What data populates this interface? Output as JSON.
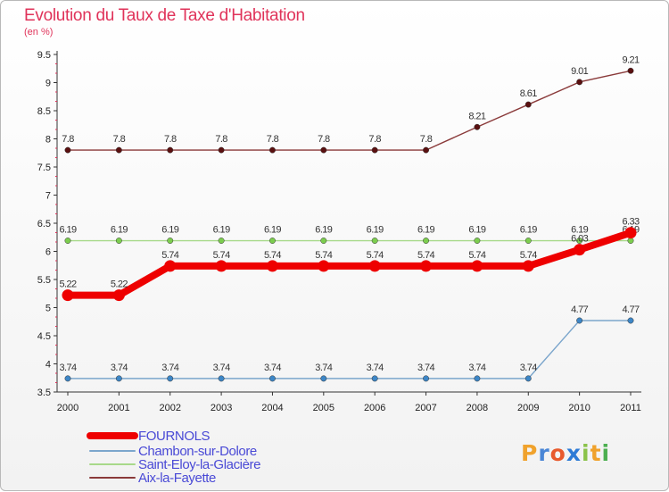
{
  "header": {
    "title": "Evolution du Taux de Taxe d'Habitation",
    "subtitle": "(en %)"
  },
  "logo": {
    "letters": [
      {
        "ch": "P",
        "color": "#f0a22c"
      },
      {
        "ch": "r",
        "color": "#4a86d6"
      },
      {
        "ch": "o",
        "color": "#e85a2d"
      },
      {
        "ch": "x",
        "color": "#2e7bd6"
      },
      {
        "ch": "i",
        "color": "#8bc34a"
      },
      {
        "ch": "t",
        "color": "#f0a22c"
      },
      {
        "ch": "i",
        "color": "#4caf50"
      }
    ]
  },
  "chart_data": {
    "type": "line",
    "title": "Evolution du Taux de Taxe d'Habitation",
    "ylabel": "(en %)",
    "xlabel": "",
    "x": [
      "2000",
      "2001",
      "2002",
      "2003",
      "2004",
      "2005",
      "2006",
      "2007",
      "2008",
      "2009",
      "2010",
      "2011"
    ],
    "ylim": [
      3.5,
      9.5
    ],
    "yticks": [
      "3.5",
      "4",
      "4.5",
      "5",
      "5.5",
      "6",
      "6.5",
      "7",
      "7.5",
      "8",
      "8.5",
      "9",
      "9.5"
    ],
    "grid": false,
    "legend_position": "bottom-left",
    "series": [
      {
        "name": "FOURNOLS",
        "color": "#ee0000",
        "width": "thick",
        "values": [
          5.22,
          5.22,
          5.74,
          5.74,
          5.74,
          5.74,
          5.74,
          5.74,
          5.74,
          5.74,
          6.03,
          6.33
        ],
        "labels": [
          "5.22",
          "5.22",
          "5.74",
          "5.74",
          "5.74",
          "5.74",
          "5.74",
          "5.74",
          "5.74",
          "5.74",
          "6.03",
          "6.33"
        ]
      },
      {
        "name": "Chambon-sur-Dolore",
        "color": "#7ba6cc",
        "point_color": "#3d86c6",
        "values": [
          3.74,
          3.74,
          3.74,
          3.74,
          3.74,
          3.74,
          3.74,
          3.74,
          3.74,
          3.74,
          4.77,
          4.77
        ],
        "labels": [
          "3.74",
          "3.74",
          "3.74",
          "3.74",
          "3.74",
          "3.74",
          "3.74",
          "3.74",
          "3.74",
          "3.74",
          "4.77",
          "4.77"
        ]
      },
      {
        "name": "Saint-Eloy-la-Glacière",
        "color": "#a8d98a",
        "point_color": "#7ccd4e",
        "values": [
          6.19,
          6.19,
          6.19,
          6.19,
          6.19,
          6.19,
          6.19,
          6.19,
          6.19,
          6.19,
          6.19,
          6.19
        ],
        "labels": [
          "6.19",
          "6.19",
          "6.19",
          "6.19",
          "6.19",
          "6.19",
          "6.19",
          "6.19",
          "6.19",
          "6.19",
          "6.19",
          "6.19"
        ]
      },
      {
        "name": "Aix-la-Fayette",
        "color": "#8a3a3a",
        "point_color": "#5a1010",
        "values": [
          7.8,
          7.8,
          7.8,
          7.8,
          7.8,
          7.8,
          7.8,
          7.8,
          8.21,
          8.61,
          9.01,
          9.21
        ],
        "labels": [
          "7.8",
          "7.8",
          "7.8",
          "7.8",
          "7.8",
          "7.8",
          "7.8",
          "7.8",
          "8.21",
          "8.61",
          "9.01",
          "9.21"
        ]
      }
    ]
  }
}
